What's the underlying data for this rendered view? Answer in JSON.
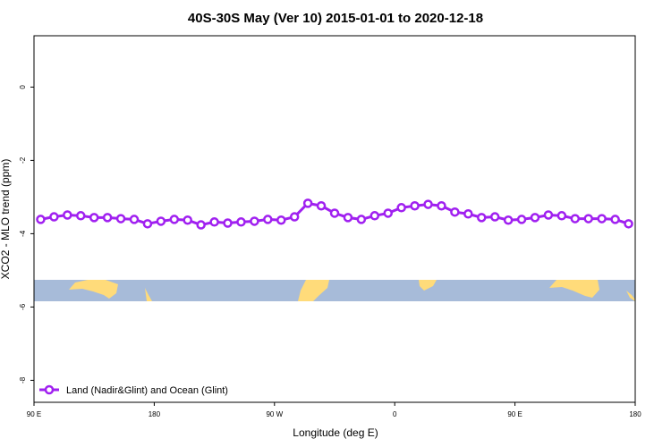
{
  "chart_data": {
    "type": "line",
    "title": "40S-30S May (Ver 10)   2015-01-01 to 2020-12-18",
    "x_label": "Longitude (deg E)",
    "y_label": "XCO2 - MLO trend (ppm)",
    "x": [
      95,
      105,
      115,
      125,
      135,
      145,
      155,
      165,
      175,
      185,
      195,
      205,
      215,
      225,
      235,
      245,
      255,
      265,
      275,
      285,
      295,
      305,
      315,
      325,
      335,
      345,
      355,
      365,
      375,
      385,
      395,
      405,
      415,
      425,
      435,
      445,
      455,
      465,
      475,
      485,
      495,
      505,
      515,
      525,
      535
    ],
    "series": [
      {
        "name": "Land (Nadir&Glint) and Ocean (Glint)",
        "color": "#a020f0",
        "values": [
          -3.61,
          -3.54,
          -3.49,
          -3.51,
          -3.56,
          -3.56,
          -3.59,
          -3.61,
          -3.73,
          -3.66,
          -3.61,
          -3.63,
          -3.76,
          -3.68,
          -3.71,
          -3.68,
          -3.66,
          -3.61,
          -3.63,
          -3.54,
          -3.17,
          -3.24,
          -3.44,
          -3.56,
          -3.61,
          -3.51,
          -3.44,
          -3.29,
          -3.24,
          -3.2,
          -3.24,
          -3.41,
          -3.46,
          -3.56,
          -3.54,
          -3.63,
          -3.61,
          -3.56,
          -3.49,
          -3.51,
          -3.59,
          -3.59,
          -3.59,
          -3.61,
          -3.73
        ]
      }
    ],
    "xlim": [
      90,
      540
    ],
    "xticks": [
      {
        "value": 90,
        "label": "90 E"
      },
      180,
      {
        "value": 270,
        "label": "90 W"
      },
      {
        "value": 360,
        "label": "0"
      },
      {
        "value": 450,
        "label": "90 E"
      },
      {
        "value": 540,
        "label": "180"
      }
    ],
    "ylim": [
      -8.6,
      1.4
    ],
    "yticks": [
      0,
      -2,
      -4,
      -6,
      -8
    ],
    "legend": "bottom-left"
  }
}
